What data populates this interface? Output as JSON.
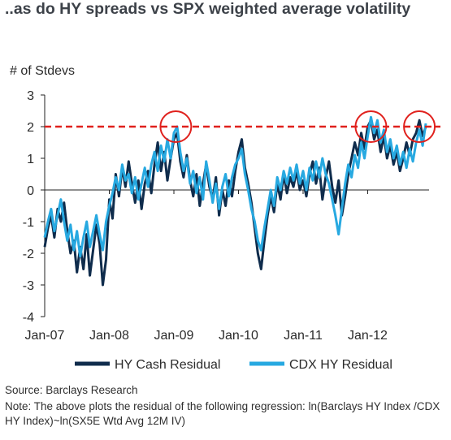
{
  "title": "..as do HY spreads vs SPX weighted average volatility",
  "chart_data": {
    "type": "line",
    "ylabel": "# of Stdevs",
    "xlabel": "",
    "ylim": [
      -4,
      3
    ],
    "y_ticks": [
      "3",
      "2",
      "1",
      "0",
      "-1",
      "-2",
      "-3",
      "-4"
    ],
    "x_ticks": [
      "Jan-07",
      "Jan-08",
      "Jan-09",
      "Jan-10",
      "Jan-11",
      "Jan-12"
    ],
    "x_tick_values": [
      2007,
      2008,
      2009,
      2010,
      2011,
      2012
    ],
    "xlim": [
      2007.0,
      2012.95
    ],
    "threshold": 2,
    "highlight_colors": {
      "circle": "#e0211d",
      "threshold": "#e0211d"
    },
    "highlights_x": [
      2009.03,
      2012.05,
      2012.8
    ],
    "legend_position": "bottom",
    "series": [
      {
        "name": "HY Cash Residual",
        "color": "#0f2c4c",
        "points": [
          [
            2007.0,
            -1.8
          ],
          [
            2007.05,
            -1.2
          ],
          [
            2007.1,
            -0.8
          ],
          [
            2007.15,
            -1.5
          ],
          [
            2007.2,
            -0.6
          ],
          [
            2007.25,
            -1.0
          ],
          [
            2007.3,
            -0.4
          ],
          [
            2007.35,
            -1.3
          ],
          [
            2007.4,
            -2.0
          ],
          [
            2007.45,
            -1.6
          ],
          [
            2007.5,
            -2.6
          ],
          [
            2007.55,
            -1.8
          ],
          [
            2007.6,
            -2.5
          ],
          [
            2007.65,
            -1.4
          ],
          [
            2007.7,
            -2.7
          ],
          [
            2007.75,
            -1.9
          ],
          [
            2007.8,
            -1.1
          ],
          [
            2007.85,
            -1.7
          ],
          [
            2007.9,
            -3.0
          ],
          [
            2007.95,
            -2.2
          ],
          [
            2008.0,
            -0.3
          ],
          [
            2008.05,
            -0.9
          ],
          [
            2008.1,
            0.5
          ],
          [
            2008.15,
            -0.2
          ],
          [
            2008.2,
            0.7
          ],
          [
            2008.25,
            0.1
          ],
          [
            2008.3,
            0.9
          ],
          [
            2008.35,
            0.2
          ],
          [
            2008.4,
            -0.4
          ],
          [
            2008.45,
            0.3
          ],
          [
            2008.5,
            -0.6
          ],
          [
            2008.55,
            0.2
          ],
          [
            2008.6,
            0.6
          ],
          [
            2008.65,
            -0.1
          ],
          [
            2008.7,
            0.8
          ],
          [
            2008.75,
            1.5
          ],
          [
            2008.8,
            0.6
          ],
          [
            2008.85,
            1.2
          ],
          [
            2008.9,
            0.3
          ],
          [
            2008.95,
            1.0
          ],
          [
            2009.0,
            1.6
          ],
          [
            2009.05,
            1.8
          ],
          [
            2009.1,
            0.9
          ],
          [
            2009.15,
            0.4
          ],
          [
            2009.2,
            1.1
          ],
          [
            2009.25,
            0.3
          ],
          [
            2009.3,
            -0.2
          ],
          [
            2009.35,
            0.5
          ],
          [
            2009.4,
            -0.5
          ],
          [
            2009.45,
            0.2
          ],
          [
            2009.5,
            0.8
          ],
          [
            2009.55,
            0.1
          ],
          [
            2009.6,
            -0.3
          ],
          [
            2009.65,
            0.4
          ],
          [
            2009.7,
            -0.8
          ],
          [
            2009.75,
            0.0
          ],
          [
            2009.8,
            -0.5
          ],
          [
            2009.85,
            0.3
          ],
          [
            2009.9,
            -0.2
          ],
          [
            2009.95,
            0.6
          ],
          [
            2010.0,
            1.2
          ],
          [
            2010.05,
            1.6
          ],
          [
            2010.1,
            0.7
          ],
          [
            2010.15,
            0.2
          ],
          [
            2010.2,
            -0.4
          ],
          [
            2010.25,
            -1.2
          ],
          [
            2010.3,
            -2.0
          ],
          [
            2010.35,
            -2.5
          ],
          [
            2010.4,
            -1.6
          ],
          [
            2010.45,
            -0.8
          ],
          [
            2010.5,
            -0.2
          ],
          [
            2010.55,
            -0.7
          ],
          [
            2010.6,
            0.2
          ],
          [
            2010.65,
            -0.3
          ],
          [
            2010.7,
            0.5
          ],
          [
            2010.75,
            -0.1
          ],
          [
            2010.8,
            0.4
          ],
          [
            2010.85,
            0.1
          ],
          [
            2010.9,
            0.6
          ],
          [
            2010.95,
            0.0
          ],
          [
            2011.0,
            0.3
          ],
          [
            2011.05,
            -0.2
          ],
          [
            2011.1,
            0.5
          ],
          [
            2011.15,
            0.9
          ],
          [
            2011.2,
            0.2
          ],
          [
            2011.25,
            0.7
          ],
          [
            2011.3,
            -0.3
          ],
          [
            2011.35,
            0.4
          ],
          [
            2011.4,
            0.9
          ],
          [
            2011.45,
            0.1
          ],
          [
            2011.5,
            -0.4
          ],
          [
            2011.55,
            0.3
          ],
          [
            2011.6,
            -0.8
          ],
          [
            2011.65,
            -0.2
          ],
          [
            2011.7,
            0.5
          ],
          [
            2011.75,
            1.0
          ],
          [
            2011.8,
            1.5
          ],
          [
            2011.85,
            1.1
          ],
          [
            2011.9,
            1.8
          ],
          [
            2011.95,
            1.3
          ],
          [
            2012.0,
            2.0
          ],
          [
            2012.05,
            2.2
          ],
          [
            2012.1,
            1.6
          ],
          [
            2012.15,
            1.9
          ],
          [
            2012.2,
            1.2
          ],
          [
            2012.25,
            1.7
          ],
          [
            2012.3,
            1.0
          ],
          [
            2012.35,
            1.4
          ],
          [
            2012.4,
            0.8
          ],
          [
            2012.45,
            1.2
          ],
          [
            2012.5,
            0.6
          ],
          [
            2012.55,
            1.0
          ],
          [
            2012.6,
            1.5
          ],
          [
            2012.65,
            1.1
          ],
          [
            2012.7,
            1.6
          ],
          [
            2012.75,
            1.8
          ],
          [
            2012.8,
            2.2
          ],
          [
            2012.85,
            1.7
          ],
          [
            2012.9,
            2.0
          ]
        ]
      },
      {
        "name": "CDX HY Residual",
        "color": "#27a9e1",
        "points": [
          [
            2007.0,
            -1.5
          ],
          [
            2007.05,
            -1.0
          ],
          [
            2007.1,
            -0.6
          ],
          [
            2007.15,
            -1.3
          ],
          [
            2007.2,
            -0.8
          ],
          [
            2007.25,
            -0.3
          ],
          [
            2007.3,
            -1.0
          ],
          [
            2007.35,
            -1.6
          ],
          [
            2007.4,
            -1.1
          ],
          [
            2007.45,
            -1.9
          ],
          [
            2007.5,
            -1.3
          ],
          [
            2007.55,
            -2.1
          ],
          [
            2007.6,
            -1.5
          ],
          [
            2007.65,
            -1.0
          ],
          [
            2007.7,
            -1.8
          ],
          [
            2007.75,
            -1.3
          ],
          [
            2007.8,
            -0.8
          ],
          [
            2007.85,
            -1.4
          ],
          [
            2007.9,
            -1.9
          ],
          [
            2007.95,
            -1.0
          ],
          [
            2008.0,
            -0.5
          ],
          [
            2008.05,
            -0.1
          ],
          [
            2008.1,
            0.4
          ],
          [
            2008.15,
            0.0
          ],
          [
            2008.2,
            0.8
          ],
          [
            2008.25,
            0.3
          ],
          [
            2008.3,
            0.5
          ],
          [
            2008.35,
            -0.1
          ],
          [
            2008.4,
            0.4
          ],
          [
            2008.45,
            -0.3
          ],
          [
            2008.5,
            0.2
          ],
          [
            2008.55,
            0.7
          ],
          [
            2008.6,
            0.1
          ],
          [
            2008.65,
            0.8
          ],
          [
            2008.7,
            1.2
          ],
          [
            2008.75,
            0.6
          ],
          [
            2008.8,
            1.4
          ],
          [
            2008.85,
            0.9
          ],
          [
            2008.9,
            1.6
          ],
          [
            2008.95,
            1.0
          ],
          [
            2009.0,
            1.8
          ],
          [
            2009.05,
            2.0
          ],
          [
            2009.1,
            1.2
          ],
          [
            2009.15,
            0.6
          ],
          [
            2009.2,
            1.0
          ],
          [
            2009.25,
            0.2
          ],
          [
            2009.3,
            0.6
          ],
          [
            2009.35,
            -0.1
          ],
          [
            2009.4,
            0.4
          ],
          [
            2009.45,
            -0.3
          ],
          [
            2009.5,
            0.9
          ],
          [
            2009.55,
            0.3
          ],
          [
            2009.6,
            -0.4
          ],
          [
            2009.65,
            0.2
          ],
          [
            2009.7,
            -0.6
          ],
          [
            2009.75,
            0.1
          ],
          [
            2009.8,
            0.5
          ],
          [
            2009.85,
            -0.2
          ],
          [
            2009.9,
            0.4
          ],
          [
            2009.95,
            0.8
          ],
          [
            2010.0,
            1.0
          ],
          [
            2010.05,
            1.3
          ],
          [
            2010.1,
            0.5
          ],
          [
            2010.15,
            0.0
          ],
          [
            2010.2,
            -0.6
          ],
          [
            2010.25,
            -1.0
          ],
          [
            2010.3,
            -1.6
          ],
          [
            2010.35,
            -1.9
          ],
          [
            2010.4,
            -1.2
          ],
          [
            2010.45,
            -0.6
          ],
          [
            2010.5,
            0.0
          ],
          [
            2010.55,
            -0.5
          ],
          [
            2010.6,
            0.4
          ],
          [
            2010.65,
            0.0
          ],
          [
            2010.7,
            0.6
          ],
          [
            2010.75,
            0.2
          ],
          [
            2010.8,
            0.7
          ],
          [
            2010.85,
            0.3
          ],
          [
            2010.9,
            0.8
          ],
          [
            2010.95,
            0.2
          ],
          [
            2011.0,
            0.6
          ],
          [
            2011.05,
            0.0
          ],
          [
            2011.1,
            0.7
          ],
          [
            2011.15,
            0.3
          ],
          [
            2011.2,
            0.9
          ],
          [
            2011.25,
            0.4
          ],
          [
            2011.3,
            1.0
          ],
          [
            2011.35,
            0.5
          ],
          [
            2011.4,
            0.2
          ],
          [
            2011.45,
            -0.3
          ],
          [
            2011.5,
            -0.8
          ],
          [
            2011.55,
            -1.4
          ],
          [
            2011.6,
            -0.6
          ],
          [
            2011.65,
            0.2
          ],
          [
            2011.7,
            0.8
          ],
          [
            2011.75,
            0.4
          ],
          [
            2011.8,
            1.1
          ],
          [
            2011.85,
            0.7
          ],
          [
            2011.9,
            1.5
          ],
          [
            2011.95,
            1.0
          ],
          [
            2012.0,
            1.7
          ],
          [
            2012.05,
            2.3
          ],
          [
            2012.1,
            1.8
          ],
          [
            2012.15,
            2.2
          ],
          [
            2012.2,
            1.5
          ],
          [
            2012.25,
            1.9
          ],
          [
            2012.3,
            1.2
          ],
          [
            2012.35,
            1.6
          ],
          [
            2012.4,
            1.0
          ],
          [
            2012.45,
            1.4
          ],
          [
            2012.5,
            0.8
          ],
          [
            2012.55,
            1.2
          ],
          [
            2012.6,
            0.7
          ],
          [
            2012.65,
            1.3
          ],
          [
            2012.7,
            0.9
          ],
          [
            2012.75,
            1.5
          ],
          [
            2012.8,
            1.9
          ],
          [
            2012.85,
            1.4
          ],
          [
            2012.9,
            2.1
          ]
        ]
      }
    ]
  },
  "source": "Source: Barclays Research",
  "note": "Note: The above plots the residual of the following regression: ln(Barclays HY Index /CDX HY Index)~ln(SX5E Wtd Avg 12M IV)"
}
